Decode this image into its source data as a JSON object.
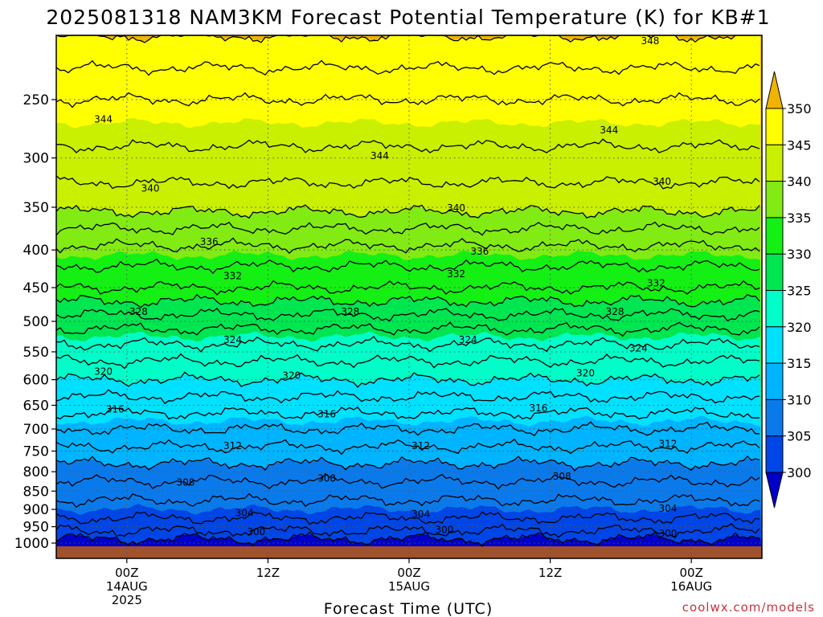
{
  "chart_data": {
    "type": "heatmap",
    "title": "2025081318 NAM3KM Forecast Potential Temperature (K) for KB#1",
    "xlabel": "Forecast Time (UTC)",
    "ylabel": "",
    "y_axis": {
      "unit": "hPa",
      "scale": "log",
      "inverted": true,
      "range": [
        200,
        1025
      ],
      "ticks": [
        250,
        300,
        350,
        400,
        450,
        500,
        550,
        600,
        650,
        700,
        750,
        800,
        850,
        900,
        950,
        1000
      ]
    },
    "x_axis": {
      "unit": "forecast hour",
      "range": [
        0,
        60
      ],
      "ticks": [
        {
          "hour": 6,
          "labels": [
            "00Z",
            "14AUG",
            "2025"
          ]
        },
        {
          "hour": 18,
          "labels": [
            "12Z"
          ]
        },
        {
          "hour": 30,
          "labels": [
            "00Z",
            "15AUG"
          ]
        },
        {
          "hour": 42,
          "labels": [
            "12Z"
          ]
        },
        {
          "hour": 54,
          "labels": [
            "00Z",
            "16AUG"
          ]
        }
      ]
    },
    "grid": true,
    "colorbar": {
      "placement": "right",
      "levels": [
        300,
        305,
        310,
        315,
        320,
        325,
        330,
        335,
        340,
        345,
        350
      ],
      "colors": [
        "#0000c8",
        "#0046e6",
        "#0a7aeb",
        "#00b4ff",
        "#00e1ff",
        "#00ffc8",
        "#00e650",
        "#14f014",
        "#82eb14",
        "#c8f000",
        "#ffff00",
        "#f0b400"
      ]
    },
    "ground_color": "#a0522d",
    "theta_profile": [
      {
        "p": 200,
        "theta": 350.5
      },
      {
        "p": 250,
        "theta": 346
      },
      {
        "p": 300,
        "theta": 343.5
      },
      {
        "p": 350,
        "theta": 340.5
      },
      {
        "p": 400,
        "theta": 335.5
      },
      {
        "p": 450,
        "theta": 332
      },
      {
        "p": 500,
        "theta": 327
      },
      {
        "p": 550,
        "theta": 323
      },
      {
        "p": 600,
        "theta": 320
      },
      {
        "p": 650,
        "theta": 317
      },
      {
        "p": 700,
        "theta": 314
      },
      {
        "p": 750,
        "theta": 311.5
      },
      {
        "p": 800,
        "theta": 309
      },
      {
        "p": 850,
        "theta": 307
      },
      {
        "p": 900,
        "theta": 305
      },
      {
        "p": 950,
        "theta": 303
      },
      {
        "p": 1000,
        "theta": 299
      }
    ],
    "contour_labels": [
      {
        "value": 348,
        "hour": 50.5,
        "p": 208
      },
      {
        "value": 344,
        "hour": 4,
        "p": 266
      },
      {
        "value": 344,
        "hour": 27.5,
        "p": 298
      },
      {
        "value": 344,
        "hour": 47,
        "p": 275
      },
      {
        "value": 340,
        "hour": 8,
        "p": 330
      },
      {
        "value": 340,
        "hour": 34,
        "p": 351
      },
      {
        "value": 340,
        "hour": 51.5,
        "p": 323
      },
      {
        "value": 336,
        "hour": 13,
        "p": 390
      },
      {
        "value": 336,
        "hour": 36,
        "p": 402
      },
      {
        "value": 332,
        "hour": 15,
        "p": 434
      },
      {
        "value": 332,
        "hour": 34,
        "p": 431
      },
      {
        "value": 332,
        "hour": 51,
        "p": 444
      },
      {
        "value": 328,
        "hour": 7,
        "p": 485
      },
      {
        "value": 328,
        "hour": 25,
        "p": 485
      },
      {
        "value": 328,
        "hour": 47.5,
        "p": 485
      },
      {
        "value": 324,
        "hour": 15,
        "p": 530
      },
      {
        "value": 324,
        "hour": 35,
        "p": 530
      },
      {
        "value": 324,
        "hour": 49.5,
        "p": 544
      },
      {
        "value": 320,
        "hour": 4,
        "p": 585
      },
      {
        "value": 320,
        "hour": 20,
        "p": 592
      },
      {
        "value": 320,
        "hour": 45,
        "p": 588
      },
      {
        "value": 316,
        "hour": 5,
        "p": 658
      },
      {
        "value": 316,
        "hour": 23,
        "p": 668
      },
      {
        "value": 316,
        "hour": 41,
        "p": 656
      },
      {
        "value": 312,
        "hour": 15,
        "p": 738
      },
      {
        "value": 312,
        "hour": 31,
        "p": 738
      },
      {
        "value": 312,
        "hour": 52,
        "p": 733
      },
      {
        "value": 308,
        "hour": 11,
        "p": 827
      },
      {
        "value": 308,
        "hour": 23,
        "p": 817
      },
      {
        "value": 308,
        "hour": 43,
        "p": 812
      },
      {
        "value": 304,
        "hour": 16,
        "p": 910
      },
      {
        "value": 304,
        "hour": 31,
        "p": 913
      },
      {
        "value": 304,
        "hour": 52,
        "p": 898
      },
      {
        "value": 300,
        "hour": 17,
        "p": 965
      },
      {
        "value": 300,
        "hour": 33,
        "p": 960
      },
      {
        "value": 300,
        "hour": 52,
        "p": 970
      }
    ]
  },
  "credit": "coolwx.com/models"
}
